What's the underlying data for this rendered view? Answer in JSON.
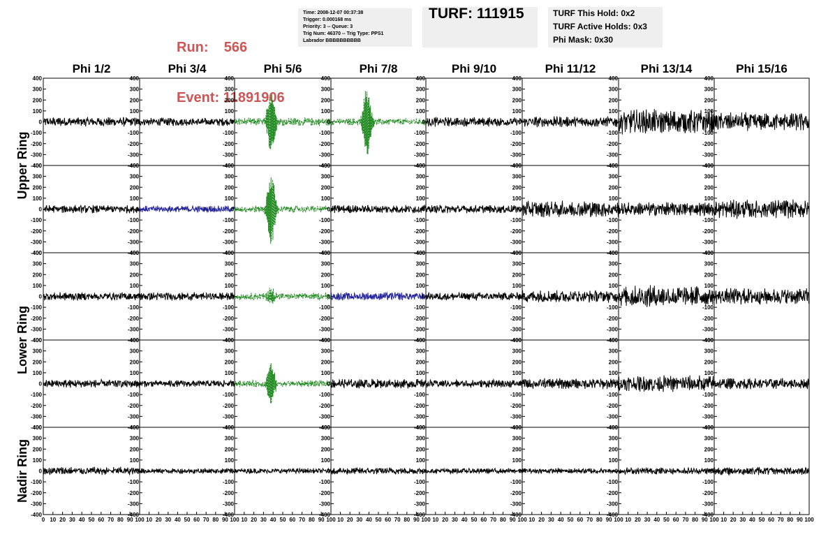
{
  "header": {
    "run_label": "Run:    566",
    "event_label": "Event: 11891906",
    "info_lines": [
      "Time: 2008-12-07 00:37:38",
      "Trigger: 0.000168 ms",
      "Priority: 3 -- Queue: 3",
      "Trig Num: 46370 -- Trig Type: PPS1",
      "Labrador BBBBBBBBBB"
    ],
    "turf_label": "TURF: 111915",
    "turf_lines": [
      "TURF This Hold: 0x2",
      "TURF Active Holds: 0x3",
      "Phi Mask: 0x30"
    ]
  },
  "chart_data": {
    "type": "line",
    "columns": [
      "Phi 1/2",
      "Phi 3/4",
      "Phi 5/6",
      "Phi 7/8",
      "Phi 9/10",
      "Phi 11/12",
      "Phi 13/14",
      "Phi 15/16"
    ],
    "ring_labels": [
      "Upper Ring",
      "Lower Ring",
      "Nadir Ring"
    ],
    "xlim": [
      0,
      100
    ],
    "ylim": [
      -400,
      400
    ],
    "x_tick_labels": [
      "0",
      "10",
      "20",
      "30",
      "40",
      "50",
      "60",
      "70",
      "80",
      "90",
      "100"
    ],
    "y_tick_labels": [
      "400",
      "300",
      "200",
      "100",
      "0",
      "-100",
      "-200",
      "-300",
      "-400"
    ],
    "colors": {
      "default": "#000000",
      "green": "#228b22",
      "blue": "#22229a"
    },
    "rows": [
      {
        "channels": [
          {
            "c": "default",
            "a": 35
          },
          {
            "c": "default",
            "a": 30
          },
          {
            "c": "green",
            "a": 30,
            "pulse": {
              "x": 38,
              "a": 290
            }
          },
          {
            "c": "green",
            "a": 25,
            "pulse": {
              "x": 38,
              "a": 330
            }
          },
          {
            "c": "default",
            "a": 35
          },
          {
            "c": "default",
            "a": 40
          },
          {
            "c": "default",
            "a": 90
          },
          {
            "c": "default",
            "a": 70
          }
        ]
      },
      {
        "channels": [
          {
            "c": "default",
            "a": 30
          },
          {
            "c": "blue",
            "a": 25
          },
          {
            "c": "green",
            "a": 25,
            "pulse": {
              "x": 38,
              "a": 330
            }
          },
          {
            "c": "default",
            "a": 30
          },
          {
            "c": "default",
            "a": 30
          },
          {
            "c": "default",
            "a": 60
          },
          {
            "c": "default",
            "a": 50
          },
          {
            "c": "default",
            "a": 70
          }
        ]
      },
      {
        "channels": [
          {
            "c": "default",
            "a": 30
          },
          {
            "c": "default",
            "a": 30
          },
          {
            "c": "green",
            "a": 25,
            "pulse": {
              "x": 38,
              "a": 70
            }
          },
          {
            "c": "blue",
            "a": 30
          },
          {
            "c": "default",
            "a": 30
          },
          {
            "c": "default",
            "a": 45
          },
          {
            "c": "default",
            "a": 80
          },
          {
            "c": "default",
            "a": 60
          }
        ]
      },
      {
        "channels": [
          {
            "c": "default",
            "a": 30
          },
          {
            "c": "default",
            "a": 25
          },
          {
            "c": "green",
            "a": 25,
            "pulse": {
              "x": 38,
              "a": 180
            }
          },
          {
            "c": "default",
            "a": 35
          },
          {
            "c": "default",
            "a": 30
          },
          {
            "c": "default",
            "a": 40
          },
          {
            "c": "default",
            "a": 60
          },
          {
            "c": "default",
            "a": 40
          }
        ]
      },
      {
        "channels": [
          {
            "c": "default",
            "a": 30
          },
          {
            "c": "default",
            "a": 20
          },
          {
            "c": "default",
            "a": 20
          },
          {
            "c": "default",
            "a": 25
          },
          {
            "c": "default",
            "a": 20
          },
          {
            "c": "default",
            "a": 20
          },
          {
            "c": "default",
            "a": 25
          },
          {
            "c": "default",
            "a": 30
          }
        ]
      }
    ]
  }
}
